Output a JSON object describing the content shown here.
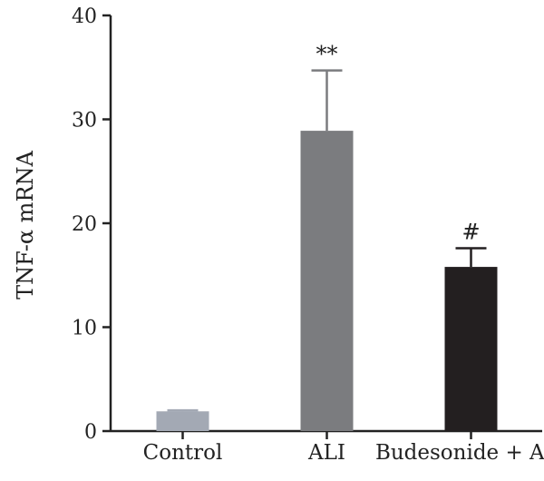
{
  "chart_data": {
    "type": "bar",
    "categories": [
      "Control",
      "ALI",
      "Budesonide + ALI"
    ],
    "values": [
      1.9,
      28.9,
      15.8
    ],
    "errors": [
      0.1,
      5.8,
      1.8
    ],
    "annotations": [
      "",
      "**",
      "#"
    ],
    "colors": [
      "#a3a9b4",
      "#7b7c7f",
      "#231f20"
    ],
    "ylabel": "TNF-α mRNA",
    "ylim": [
      0,
      40
    ],
    "yticks": [
      "0",
      "10",
      "20",
      "30",
      "40"
    ],
    "grid": false
  }
}
